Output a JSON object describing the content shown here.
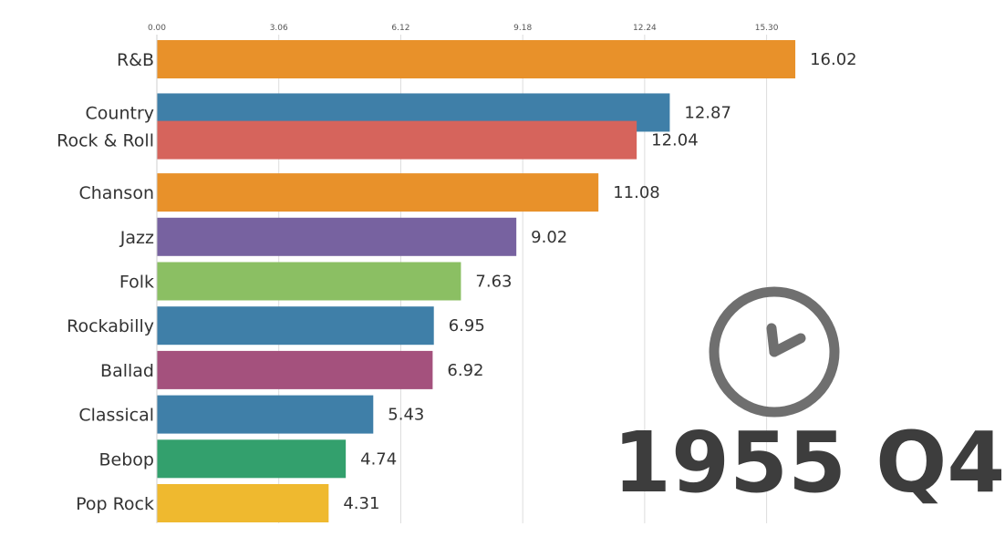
{
  "chart_data": {
    "type": "bar",
    "orientation": "horizontal",
    "title": "",
    "xlabel": "",
    "ylabel": "",
    "xlim": [
      0,
      18
    ],
    "ticks": [
      "0.00",
      "3.06",
      "6.12",
      "9.18",
      "12.24",
      "15.30"
    ],
    "tick_values": [
      0,
      3.06,
      6.12,
      9.18,
      12.24,
      15.3
    ],
    "grid": true,
    "period": "1955 Q4",
    "categories": [
      "R&B",
      "Country",
      "Rock & Roll",
      "Chanson",
      "Jazz",
      "Folk",
      "Rockabilly",
      "Ballad",
      "Classical",
      "Bebop",
      "Pop Rock"
    ],
    "values": [
      16.02,
      12.87,
      12.04,
      11.08,
      9.02,
      7.63,
      6.95,
      6.92,
      5.43,
      4.74,
      4.31
    ],
    "value_labels": [
      "16.02",
      "12.87",
      "12.04",
      "11.08",
      "9.02",
      "7.63",
      "6.95",
      "6.92",
      "5.43",
      "4.74",
      "4.31"
    ],
    "colors": [
      "#e8912a",
      "#3f7fa8",
      "#d6645c",
      "#e8912a",
      "#7762a0",
      "#8bbf63",
      "#3f7fa8",
      "#a4517d",
      "#3f7fa8",
      "#33a06d",
      "#efb92f"
    ],
    "slots": [
      0,
      1.2,
      1.82,
      3,
      4,
      5,
      6,
      7,
      8,
      9,
      10
    ]
  },
  "clock_icon": "clock-icon"
}
